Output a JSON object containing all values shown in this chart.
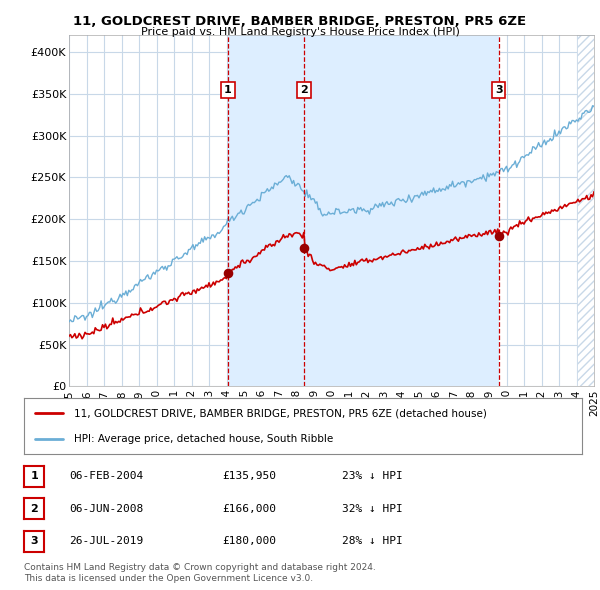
{
  "title": "11, GOLDCREST DRIVE, BAMBER BRIDGE, PRESTON, PR5 6ZE",
  "subtitle": "Price paid vs. HM Land Registry's House Price Index (HPI)",
  "ylim": [
    0,
    420000
  ],
  "yticks": [
    0,
    50000,
    100000,
    150000,
    200000,
    250000,
    300000,
    350000,
    400000
  ],
  "ytick_labels": [
    "£0",
    "£50K",
    "£100K",
    "£150K",
    "£200K",
    "£250K",
    "£300K",
    "£350K",
    "£400K"
  ],
  "background_color": "#ffffff",
  "plot_bg_color": "#ffffff",
  "grid_color": "#c8d8e8",
  "hpi_color": "#6baed6",
  "price_color": "#cc0000",
  "sale_marker_color": "#990000",
  "transaction_color": "#cc0000",
  "shade_color": "#ddeeff",
  "hatch_color": "#c8d8e8",
  "sale_points": [
    {
      "date": 2004.08,
      "price": 135950,
      "label": "1"
    },
    {
      "date": 2008.42,
      "price": 166000,
      "label": "2"
    },
    {
      "date": 2019.55,
      "price": 180000,
      "label": "3"
    }
  ],
  "legend_entries": [
    {
      "label": "11, GOLDCREST DRIVE, BAMBER BRIDGE, PRESTON, PR5 6ZE (detached house)",
      "color": "#cc0000"
    },
    {
      "label": "HPI: Average price, detached house, South Ribble",
      "color": "#6baed6"
    }
  ],
  "table_rows": [
    {
      "num": "1",
      "date": "06-FEB-2004",
      "price": "£135,950",
      "change": "23% ↓ HPI"
    },
    {
      "num": "2",
      "date": "06-JUN-2008",
      "price": "£166,000",
      "change": "32% ↓ HPI"
    },
    {
      "num": "3",
      "date": "26-JUL-2019",
      "price": "£180,000",
      "change": "28% ↓ HPI"
    }
  ],
  "footer": "Contains HM Land Registry data © Crown copyright and database right 2024.\nThis data is licensed under the Open Government Licence v3.0.",
  "xmin": 1995,
  "xmax": 2025,
  "hatch_start": 2024.0
}
